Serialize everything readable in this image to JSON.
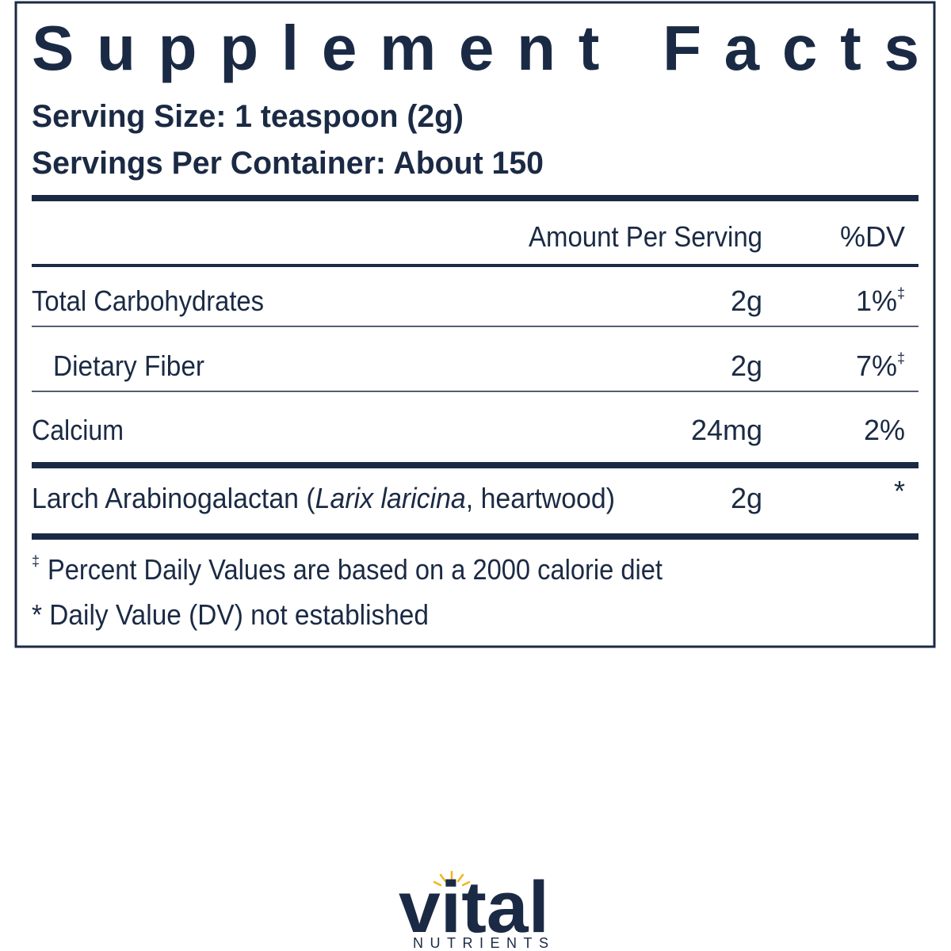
{
  "title": "Supplement Facts",
  "serving_size": "Serving Size: 1 teaspoon (2g)",
  "servings_per_container": "Servings Per Container: About 150",
  "table": {
    "header": [
      "Amount Per Serving",
      "%DV"
    ],
    "rows": [
      {
        "name": [
          "Total Carbohydrates"
        ],
        "amount": "2g",
        "dv": "1%",
        "dv_mark": "‡"
      },
      {
        "name": [
          "Dietary Fiber"
        ],
        "amount": "2g",
        "dv": "7%",
        "dv_mark": "‡"
      },
      {
        "name": [
          "Calcium"
        ],
        "amount": "24mg",
        "dv": "2%"
      },
      {
        "name": [
          "Larch Arabinogalactan (",
          "Larix laricina",
          ", heartwood)"
        ],
        "amount": "2g",
        "dv": "*"
      }
    ]
  },
  "footnotes": [
    {
      "mark": "‡",
      "text": "Percent Daily Values are based on a 2000 calorie diet"
    },
    {
      "text": "* Daily Value (DV) not established"
    }
  ],
  "brand": {
    "name": "vital",
    "tagline": "NUTRIENTS"
  }
}
